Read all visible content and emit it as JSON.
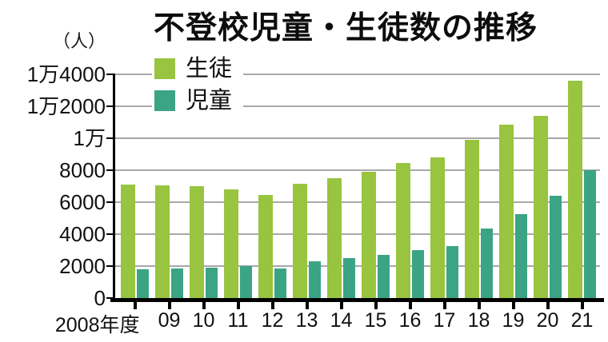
{
  "title": "不登校児童・生徒数の推移",
  "unit_label": "（人）",
  "colors": {
    "seito_green": "#98c440",
    "jido_teal": "#3ba485",
    "gridline": "#a8a8a8",
    "axis": "#000000",
    "text": "#111111",
    "background": "#ffffff"
  },
  "chart_data": {
    "type": "bar",
    "title": "不登校児童・生徒数の推移",
    "ylabel": "（人）",
    "ylim": [
      0,
      14000
    ],
    "grid": true,
    "legend_position": "top-left",
    "categories": [
      "2008年度",
      "09",
      "10",
      "11",
      "12",
      "13",
      "14",
      "15",
      "16",
      "17",
      "18",
      "19",
      "20",
      "21"
    ],
    "series": [
      {
        "name": "生徒",
        "color": "#98c440",
        "values": [
          7100,
          7050,
          7000,
          6800,
          6450,
          7150,
          7500,
          7900,
          8450,
          8800,
          9900,
          10850,
          11400,
          13600
        ]
      },
      {
        "name": "児童",
        "color": "#3ba485",
        "values": [
          1800,
          1850,
          1900,
          2000,
          1850,
          2300,
          2500,
          2700,
          3000,
          3250,
          4350,
          5250,
          6400,
          8000
        ]
      }
    ],
    "yticks": [
      {
        "value": 0,
        "label": "0"
      },
      {
        "value": 2000,
        "label": "2000"
      },
      {
        "value": 4000,
        "label": "4000"
      },
      {
        "value": 6000,
        "label": "6000"
      },
      {
        "value": 8000,
        "label": "8000"
      },
      {
        "value": 10000,
        "label": "1万"
      },
      {
        "value": 12000,
        "label": "1万2000"
      },
      {
        "value": 14000,
        "label": "1万4000"
      }
    ]
  }
}
